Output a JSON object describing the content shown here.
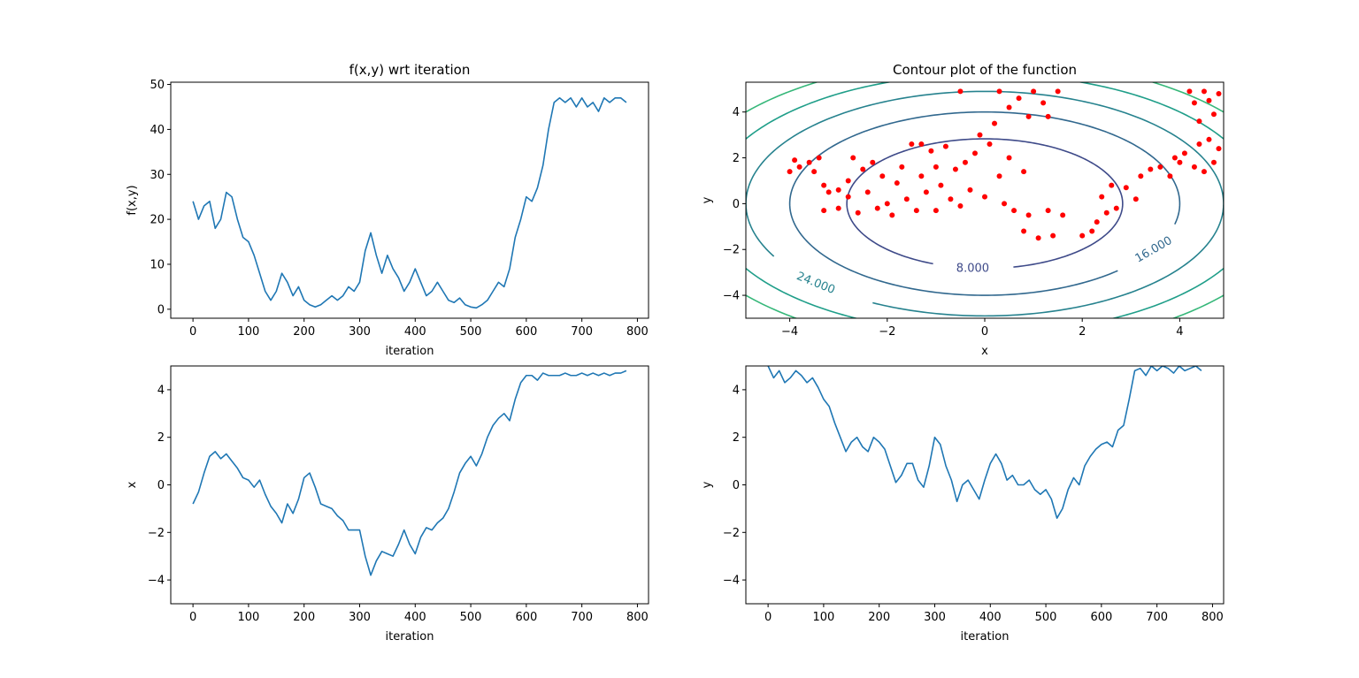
{
  "chart_data": [
    {
      "type": "line",
      "title": "f(x,y) wrt iteration",
      "xlabel": "iteration",
      "ylabel": "f(x,y)",
      "xlim": [
        -40,
        820
      ],
      "ylim": [
        -2,
        50.5
      ],
      "xticks": [
        0,
        100,
        200,
        300,
        400,
        500,
        600,
        700,
        800
      ],
      "yticks": [
        0,
        10,
        20,
        30,
        40,
        50
      ],
      "color": "#1f77b4",
      "series": [
        {
          "x": [
            0,
            10,
            20,
            30,
            40,
            50,
            60,
            70,
            80,
            90,
            100,
            110,
            120,
            130,
            140,
            150,
            160,
            170,
            180,
            190,
            200,
            210,
            220,
            230,
            240,
            250,
            260,
            270,
            280,
            290,
            300,
            310,
            320,
            330,
            340,
            350,
            360,
            370,
            380,
            390,
            400,
            410,
            420,
            430,
            440,
            450,
            460,
            470,
            480,
            490,
            500,
            510,
            520,
            530,
            540,
            550,
            560,
            570,
            580,
            590,
            600,
            610,
            620,
            630,
            640,
            650,
            660,
            670,
            680,
            690,
            700,
            710,
            720,
            730,
            740,
            750,
            760,
            770,
            780
          ],
          "y": [
            24,
            20,
            23,
            24,
            18,
            20,
            26,
            25,
            20,
            16,
            15,
            12,
            8,
            4,
            2,
            4,
            8,
            6,
            3,
            5,
            2,
            1,
            0.5,
            1,
            2,
            3,
            2,
            3,
            5,
            4,
            6,
            13,
            17,
            12,
            8,
            12,
            9,
            7,
            4,
            6,
            9,
            6,
            3,
            4,
            6,
            4,
            2,
            1.5,
            2.5,
            1,
            0.5,
            0.3,
            1,
            2,
            4,
            6,
            5,
            9,
            16,
            20,
            25,
            24,
            27,
            32,
            40,
            46,
            47,
            46,
            47,
            45,
            47,
            45,
            46,
            44,
            47,
            46,
            47,
            47,
            46
          ]
        }
      ]
    },
    {
      "type": "contour",
      "title": "Contour plot of the function",
      "xlabel": "x",
      "ylabel": "y",
      "xlim": [
        -4.9,
        4.9
      ],
      "ylim": [
        -5,
        5.3
      ],
      "xticks": [
        -4,
        -2,
        0,
        2,
        4
      ],
      "yticks": [
        -4,
        -2,
        0,
        2,
        4
      ],
      "contour_function": "x^2 + y^2",
      "contour_levels": [
        8,
        16,
        24,
        32,
        40
      ],
      "contour_colors": [
        "#3e4a89",
        "#31688e",
        "#26828e",
        "#1f9e89",
        "#35b779"
      ],
      "contour_labels": [
        {
          "text": "8.000",
          "level": 8
        },
        {
          "text": "16.000",
          "level": 16
        },
        {
          "text": "24.000",
          "level": 24
        }
      ],
      "scatter_color": "#ff0000",
      "scatter_points": [
        [
          -4.0,
          1.4
        ],
        [
          -3.9,
          1.9
        ],
        [
          -3.8,
          1.6
        ],
        [
          -3.6,
          1.8
        ],
        [
          -3.5,
          1.4
        ],
        [
          -3.4,
          2.0
        ],
        [
          -3.3,
          0.8
        ],
        [
          -3.3,
          -0.3
        ],
        [
          -3.2,
          0.5
        ],
        [
          -3.0,
          0.6
        ],
        [
          -3.0,
          -0.2
        ],
        [
          -2.8,
          0.3
        ],
        [
          -2.8,
          1.0
        ],
        [
          -2.7,
          2.0
        ],
        [
          -2.6,
          -0.4
        ],
        [
          -2.5,
          1.5
        ],
        [
          -2.4,
          0.5
        ],
        [
          -2.3,
          1.8
        ],
        [
          -2.2,
          -0.2
        ],
        [
          -2.1,
          1.2
        ],
        [
          -2.0,
          0.0
        ],
        [
          -1.9,
          -0.5
        ],
        [
          -1.8,
          0.9
        ],
        [
          -1.7,
          1.6
        ],
        [
          -1.6,
          0.2
        ],
        [
          -1.5,
          2.6
        ],
        [
          -1.4,
          -0.3
        ],
        [
          -1.3,
          1.2
        ],
        [
          -1.3,
          2.6
        ],
        [
          -1.2,
          0.5
        ],
        [
          -1.1,
          2.3
        ],
        [
          -1.0,
          1.6
        ],
        [
          -1.0,
          -0.3
        ],
        [
          -0.9,
          0.8
        ],
        [
          -0.8,
          2.5
        ],
        [
          -0.7,
          0.2
        ],
        [
          -0.6,
          1.5
        ],
        [
          -0.5,
          -0.1
        ],
        [
          -0.5,
          4.9
        ],
        [
          -0.4,
          1.8
        ],
        [
          -0.3,
          0.6
        ],
        [
          -0.2,
          2.2
        ],
        [
          -0.1,
          3.0
        ],
        [
          0.0,
          0.3
        ],
        [
          0.1,
          2.6
        ],
        [
          0.2,
          3.5
        ],
        [
          0.3,
          1.2
        ],
        [
          0.3,
          4.9
        ],
        [
          0.4,
          0.0
        ],
        [
          0.5,
          2.0
        ],
        [
          0.5,
          4.2
        ],
        [
          0.6,
          -0.3
        ],
        [
          0.7,
          4.6
        ],
        [
          0.8,
          1.4
        ],
        [
          0.8,
          -1.2
        ],
        [
          0.9,
          -0.5
        ],
        [
          0.9,
          3.8
        ],
        [
          1.0,
          4.9
        ],
        [
          1.1,
          -1.5
        ],
        [
          1.2,
          4.4
        ],
        [
          1.3,
          -0.3
        ],
        [
          1.3,
          3.8
        ],
        [
          1.4,
          -1.4
        ],
        [
          1.5,
          4.9
        ],
        [
          1.6,
          -0.5
        ],
        [
          2.0,
          -1.4
        ],
        [
          2.2,
          -1.2
        ],
        [
          2.3,
          -0.8
        ],
        [
          2.4,
          0.3
        ],
        [
          2.5,
          -0.4
        ],
        [
          2.6,
          0.8
        ],
        [
          2.7,
          -0.2
        ],
        [
          2.9,
          0.7
        ],
        [
          3.1,
          0.2
        ],
        [
          3.2,
          1.2
        ],
        [
          3.4,
          1.5
        ],
        [
          3.6,
          1.6
        ],
        [
          3.8,
          1.2
        ],
        [
          3.9,
          2.0
        ],
        [
          4.0,
          1.8
        ],
        [
          4.1,
          2.2
        ],
        [
          4.2,
          4.9
        ],
        [
          4.3,
          1.6
        ],
        [
          4.3,
          4.4
        ],
        [
          4.4,
          2.6
        ],
        [
          4.4,
          3.6
        ],
        [
          4.5,
          1.4
        ],
        [
          4.5,
          4.9
        ],
        [
          4.6,
          2.8
        ],
        [
          4.6,
          4.5
        ],
        [
          4.7,
          1.8
        ],
        [
          4.7,
          3.9
        ],
        [
          4.8,
          2.4
        ],
        [
          4.8,
          4.8
        ]
      ]
    },
    {
      "type": "line",
      "title": "",
      "xlabel": "iteration",
      "ylabel": "x",
      "xlim": [
        -40,
        820
      ],
      "ylim": [
        -5,
        5
      ],
      "xticks": [
        0,
        100,
        200,
        300,
        400,
        500,
        600,
        700,
        800
      ],
      "yticks": [
        -4,
        -2,
        0,
        2,
        4
      ],
      "color": "#1f77b4",
      "series": [
        {
          "x": [
            0,
            10,
            20,
            30,
            40,
            50,
            60,
            70,
            80,
            90,
            100,
            110,
            120,
            130,
            140,
            150,
            160,
            170,
            180,
            190,
            200,
            210,
            220,
            230,
            240,
            250,
            260,
            270,
            280,
            290,
            300,
            310,
            320,
            330,
            340,
            350,
            360,
            370,
            380,
            390,
            400,
            410,
            420,
            430,
            440,
            450,
            460,
            470,
            480,
            490,
            500,
            510,
            520,
            530,
            540,
            550,
            560,
            570,
            580,
            590,
            600,
            610,
            620,
            630,
            640,
            650,
            660,
            670,
            680,
            690,
            700,
            710,
            720,
            730,
            740,
            750,
            760,
            770,
            780
          ],
          "y": [
            -0.8,
            -0.3,
            0.5,
            1.2,
            1.4,
            1.1,
            1.3,
            1.0,
            0.7,
            0.3,
            0.2,
            -0.1,
            0.2,
            -0.4,
            -0.9,
            -1.2,
            -1.6,
            -0.8,
            -1.2,
            -0.6,
            0.3,
            0.5,
            -0.1,
            -0.8,
            -0.9,
            -1.0,
            -1.3,
            -1.5,
            -1.9,
            -1.9,
            -1.9,
            -3.0,
            -3.8,
            -3.2,
            -2.8,
            -2.9,
            -3.0,
            -2.5,
            -1.9,
            -2.5,
            -2.9,
            -2.2,
            -1.8,
            -1.9,
            -1.6,
            -1.4,
            -1.0,
            -0.3,
            0.5,
            0.9,
            1.2,
            0.8,
            1.3,
            2.0,
            2.5,
            2.8,
            3.0,
            2.7,
            3.6,
            4.3,
            4.6,
            4.6,
            4.4,
            4.7,
            4.6,
            4.6,
            4.6,
            4.7,
            4.6,
            4.6,
            4.7,
            4.6,
            4.7,
            4.6,
            4.7,
            4.6,
            4.7,
            4.7,
            4.8
          ]
        }
      ]
    },
    {
      "type": "line",
      "title": "",
      "xlabel": "iteration",
      "ylabel": "y",
      "xlim": [
        -40,
        820
      ],
      "ylim": [
        -5,
        5
      ],
      "xticks": [
        0,
        100,
        200,
        300,
        400,
        500,
        600,
        700,
        800
      ],
      "yticks": [
        -4,
        -2,
        0,
        2,
        4
      ],
      "color": "#1f77b4",
      "series": [
        {
          "x": [
            0,
            10,
            20,
            30,
            40,
            50,
            60,
            70,
            80,
            90,
            100,
            110,
            120,
            130,
            140,
            150,
            160,
            170,
            180,
            190,
            200,
            210,
            220,
            230,
            240,
            250,
            260,
            270,
            280,
            290,
            300,
            310,
            320,
            330,
            340,
            350,
            360,
            370,
            380,
            390,
            400,
            410,
            420,
            430,
            440,
            450,
            460,
            470,
            480,
            490,
            500,
            510,
            520,
            530,
            540,
            550,
            560,
            570,
            580,
            590,
            600,
            610,
            620,
            630,
            640,
            650,
            660,
            670,
            680,
            690,
            700,
            710,
            720,
            730,
            740,
            750,
            760,
            770,
            780
          ],
          "y": [
            5.0,
            4.5,
            4.8,
            4.3,
            4.5,
            4.8,
            4.6,
            4.3,
            4.5,
            4.1,
            3.6,
            3.3,
            2.6,
            2.0,
            1.4,
            1.8,
            2.0,
            1.6,
            1.4,
            2.0,
            1.8,
            1.5,
            0.8,
            0.1,
            0.4,
            0.9,
            0.9,
            0.2,
            -0.1,
            0.8,
            2.0,
            1.7,
            0.8,
            0.2,
            -0.7,
            0.0,
            0.2,
            -0.2,
            -0.6,
            0.2,
            0.9,
            1.3,
            0.9,
            0.2,
            0.4,
            0.0,
            0.0,
            0.2,
            -0.2,
            -0.4,
            -0.2,
            -0.6,
            -1.4,
            -1.0,
            -0.2,
            0.3,
            0.0,
            0.8,
            1.2,
            1.5,
            1.7,
            1.8,
            1.6,
            2.3,
            2.5,
            3.6,
            4.8,
            4.9,
            4.6,
            5.0,
            4.8,
            5.0,
            4.9,
            4.7,
            5.0,
            4.8,
            4.9,
            5.0,
            4.8
          ]
        }
      ]
    }
  ]
}
